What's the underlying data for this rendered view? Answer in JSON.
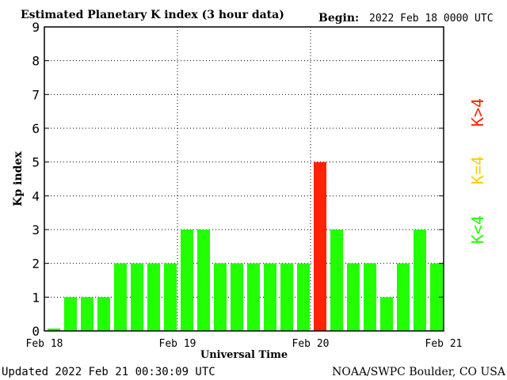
{
  "chart_data": {
    "type": "bar",
    "title": "Estimated Planetary K index (3 hour data)",
    "begin_label": "Begin:",
    "begin_value": "2022 Feb 18 0000 UTC",
    "xlabel": "Universal Time",
    "ylabel": "Kp index",
    "ylim": [
      0,
      9
    ],
    "yticks": [
      "0",
      "1",
      "2",
      "3",
      "4",
      "5",
      "6",
      "7",
      "8",
      "9"
    ],
    "xticks": [
      "Feb 18",
      "Feb 19",
      "Feb 20",
      "Feb 21"
    ],
    "grid": true,
    "values": [
      0,
      1,
      1,
      1,
      2,
      2,
      2,
      2,
      3,
      3,
      2,
      2,
      2,
      2,
      2,
      2,
      5,
      3,
      2,
      2,
      1,
      2,
      3,
      2
    ],
    "legend": [
      {
        "label": "K<4",
        "color": "#22ff00"
      },
      {
        "label": "K=4",
        "color": "#ffcc00"
      },
      {
        "label": "K>4",
        "color": "#ff2200"
      }
    ],
    "legend_placement": "right"
  },
  "footer": {
    "updated": "Updated 2022 Feb 21 00:30:09 UTC",
    "source": "NOAA/SWPC Boulder, CO USA"
  }
}
